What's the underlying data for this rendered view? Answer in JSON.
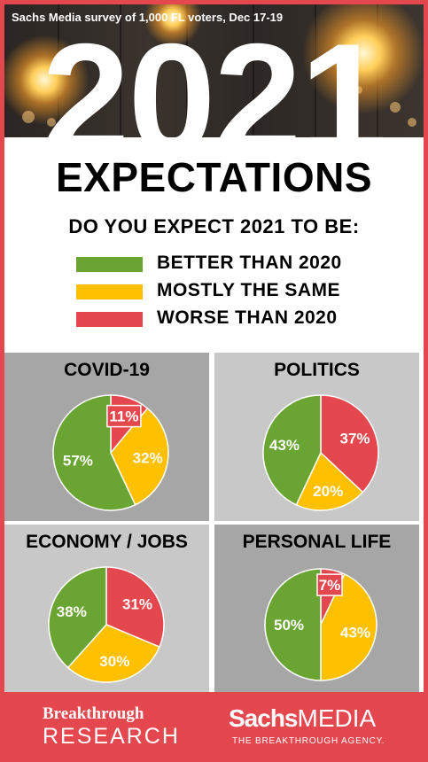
{
  "header": {
    "survey_note": "Sachs Media survey of 1,000 FL voters, Dec 17-19",
    "year": "2021"
  },
  "title": "EXPECTATIONS",
  "question": "DO YOU EXPECT 2021 TO BE:",
  "colors": {
    "better": "#6aa533",
    "same": "#ffc000",
    "worse": "#e5474e",
    "panel_dark": "#a6a6a6",
    "panel_light": "#c8c8c8",
    "footer": "#e5474e"
  },
  "legend": [
    {
      "label": "BETTER THAN 2020",
      "color": "#6aa533"
    },
    {
      "label": "MOSTLY THE SAME",
      "color": "#ffc000"
    },
    {
      "label": "WORSE THAN 2020",
      "color": "#e5474e"
    }
  ],
  "chart_data": [
    {
      "type": "pie",
      "title": "COVID-19",
      "categories": [
        "BETTER THAN 2020",
        "MOSTLY THE SAME",
        "WORSE THAN 2020"
      ],
      "values": [
        57,
        32,
        11
      ],
      "labels": [
        "57%",
        "32%",
        "11%"
      ]
    },
    {
      "type": "pie",
      "title": "POLITICS",
      "categories": [
        "BETTER THAN 2020",
        "MOSTLY THE SAME",
        "WORSE THAN 2020"
      ],
      "values": [
        43,
        20,
        37
      ],
      "labels": [
        "43%",
        "20%",
        "37%"
      ]
    },
    {
      "type": "pie",
      "title": "ECONOMY / JOBS",
      "categories": [
        "BETTER THAN 2020",
        "MOSTLY THE SAME",
        "WORSE THAN 2020"
      ],
      "values": [
        38,
        30,
        31
      ],
      "labels": [
        "38%",
        "30%",
        "31%"
      ]
    },
    {
      "type": "pie",
      "title": "PERSONAL LIFE",
      "categories": [
        "BETTER THAN 2020",
        "MOSTLY THE SAME",
        "WORSE THAN 2020"
      ],
      "values": [
        50,
        43,
        7
      ],
      "labels": [
        "50%",
        "43%",
        "7%"
      ]
    }
  ],
  "footer": {
    "left_line1": "Breakthrough",
    "left_line2": "RESEARCH",
    "right_brand_bold": "Sachs",
    "right_brand_light": "MEDIA",
    "right_tagline": "THE BREAKTHROUGH AGENCY."
  }
}
